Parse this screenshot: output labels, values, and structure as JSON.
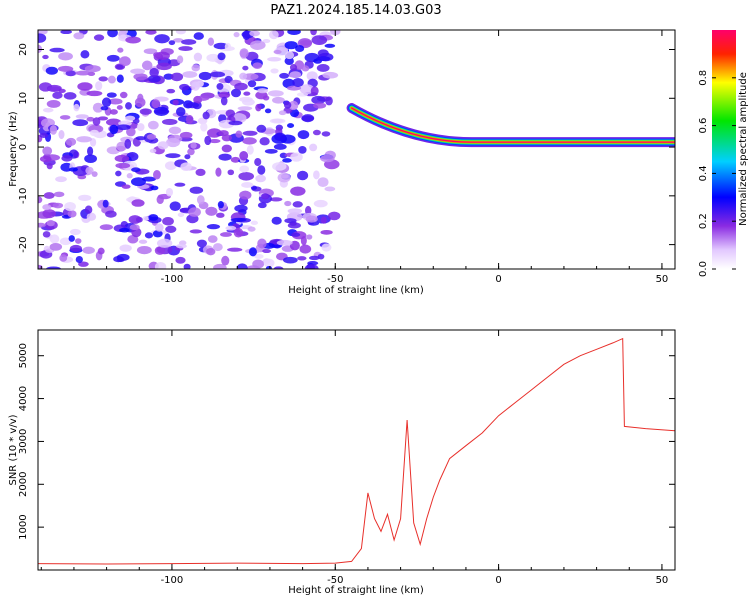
{
  "title": "PAZ1.2024.185.14.03.G03",
  "chart_data": [
    {
      "type": "heatmap",
      "xlabel": "Height of straight line (km)",
      "ylabel": "Frequency (Hz)",
      "xlim": [
        -141,
        54
      ],
      "ylim": [
        -25,
        24
      ],
      "xticks": [
        -100,
        -50,
        0,
        50
      ],
      "yticks": [
        -20,
        -10,
        0,
        10,
        20
      ],
      "colorbar": {
        "label": "Normalized spectral amplitude",
        "range": [
          0,
          1
        ],
        "ticks": [
          "0.0",
          "0.2",
          "0.4",
          "0.6",
          "0.8"
        ]
      },
      "features": [
        {
          "x_from": -141,
          "x_to": -50,
          "freq_range": [
            -25,
            24
          ],
          "amplitude_range": [
            0.05,
            0.3
          ],
          "description": "scattered noise"
        },
        {
          "x_from": -45,
          "x_to": 54,
          "freq_start": 8,
          "freq_end": 1,
          "amplitude_peak": 1.0,
          "description": "main signal tone"
        }
      ]
    },
    {
      "type": "line",
      "xlabel": "Height of straight line (km)",
      "ylabel": "SNR (10 * v/v)",
      "xlim": [
        -141,
        54
      ],
      "ylim": [
        0,
        5600
      ],
      "xticks": [
        -100,
        -50,
        0,
        50
      ],
      "yticks": [
        1000,
        2000,
        3000,
        4000,
        5000
      ],
      "series": [
        {
          "color": "#e8302b",
          "x": [
            -141,
            -120,
            -100,
            -80,
            -60,
            -50,
            -45,
            -42,
            -40,
            -38,
            -36,
            -34,
            -32,
            -30,
            -28,
            -26,
            -24,
            -22,
            -20,
            -18,
            -15,
            -10,
            -5,
            0,
            5,
            10,
            15,
            20,
            25,
            30,
            35,
            38,
            38.5,
            45,
            54
          ],
          "values": [
            150,
            140,
            150,
            160,
            150,
            160,
            200,
            500,
            1800,
            1200,
            900,
            1300,
            700,
            1200,
            3500,
            1100,
            600,
            1200,
            1700,
            2100,
            2600,
            2900,
            3200,
            3600,
            3900,
            4200,
            4500,
            4800,
            5000,
            5150,
            5300,
            5400,
            3350,
            3300,
            3250
          ]
        }
      ]
    }
  ]
}
